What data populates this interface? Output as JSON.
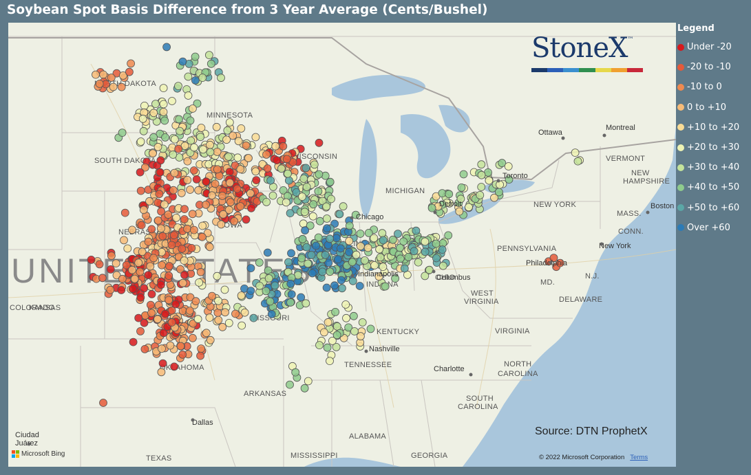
{
  "title": "Soybean Spot Basis Difference from 3 Year Average (Cents/Bushel)",
  "brand": {
    "name": "StoneX",
    "tm": "™",
    "stripe_colors": [
      "#1b3a6b",
      "#2b5fb8",
      "#3a8fcf",
      "#2f8f4f",
      "#e6d84a",
      "#f0a030",
      "#c8283a"
    ]
  },
  "source": "Source: DTN ProphetX",
  "attribution": {
    "provider": "Microsoft Bing",
    "copyright": "© 2022 Microsoft Corporation",
    "terms": "Terms"
  },
  "legend": {
    "title": "Legend",
    "items": [
      {
        "label": "Under -20",
        "color": "#d7191c"
      },
      {
        "label": "-20 to -10",
        "color": "#e55a3a"
      },
      {
        "label": "-10 to 0",
        "color": "#ef8a50"
      },
      {
        "label": "0 to +10",
        "color": "#f7bb78"
      },
      {
        "label": "+10 to +20",
        "color": "#f9dc96"
      },
      {
        "label": "+20 to +30",
        "color": "#eef3b4"
      },
      {
        "label": "+30 to +40",
        "color": "#c4e39b"
      },
      {
        "label": "+40 to +50",
        "color": "#8fcb8d"
      },
      {
        "label": "+50 to +60",
        "color": "#5ba7a6"
      },
      {
        "label": "Over +60",
        "color": "#2c7bb6"
      }
    ]
  },
  "map": {
    "country_label": "UNITED STATES",
    "state_labels": [
      "NORTH DAKOTA",
      "MINNESOTA",
      "SOUTH DAKOTA",
      "WISCONSIN",
      "MICHIGAN",
      "NEBRASKA",
      "IOWA",
      "ILLINOIS",
      "INDIANA",
      "OHIO",
      "PENNSYLVANIA",
      "NEW YORK",
      "VERMONT",
      "NEW HAMPSHIRE",
      "MASS.",
      "CONN.",
      "N.J.",
      "MD.",
      "DELAWARE",
      "WEST VIRGINIA",
      "VIRGINIA",
      "KENTUCKY",
      "TENNESSEE",
      "NORTH CAROLINA",
      "SOUTH CAROLINA",
      "GEORGIA",
      "ALABAMA",
      "MISSISSIPPI",
      "ARKANSAS",
      "MISSOURI",
      "KANSAS",
      "OKLAHOMA",
      "TEXAS",
      "COLORADO"
    ],
    "city_labels": [
      "Chicago",
      "Detroit",
      "Toronto",
      "Ottawa",
      "Montreal",
      "Boston",
      "New York",
      "Philadelphia",
      "Columbus",
      "Indianapolis",
      "Nashville",
      "Charlotte",
      "Dallas",
      "Ciudad Juárez"
    ]
  }
}
